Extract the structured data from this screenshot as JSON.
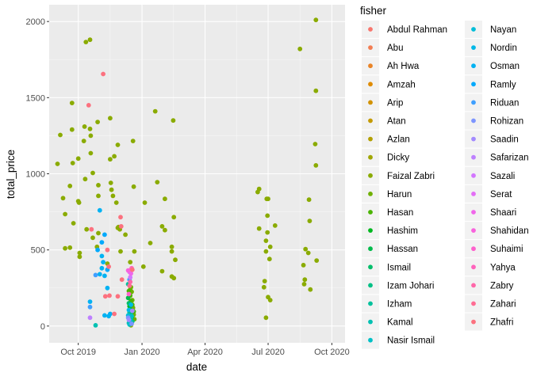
{
  "chart_data": {
    "type": "scatter",
    "title": "",
    "xlabel": "date",
    "ylabel": "total_price",
    "x_type": "date",
    "xlim": [
      "2019-08-20",
      "2020-10-20"
    ],
    "ylim": [
      -110,
      2110
    ],
    "x_ticks": [
      {
        "value": "2019-10-01",
        "label": "Oct 2019"
      },
      {
        "value": "2020-01-01",
        "label": "Jan 2020"
      },
      {
        "value": "2020-04-01",
        "label": "Apr 2020"
      },
      {
        "value": "2020-07-01",
        "label": "Jul 2020"
      },
      {
        "value": "2020-10-01",
        "label": "Oct 2020"
      }
    ],
    "y_ticks": [
      0,
      500,
      1000,
      1500,
      2000
    ],
    "grid": true,
    "panel_background": "#ebebeb",
    "legend": {
      "title": "fisher",
      "placement": "right",
      "columns": 2
    },
    "series": [
      {
        "name": "Abdul Rahman",
        "color": "#F8766D",
        "points": []
      },
      {
        "name": "Abu",
        "color": "#F27D52",
        "points": []
      },
      {
        "name": "Ah Hwa",
        "color": "#E98427",
        "points": []
      },
      {
        "name": "Amzah",
        "color": "#DF8B00",
        "points": []
      },
      {
        "name": "Arip",
        "color": "#D29200",
        "points": []
      },
      {
        "name": "Atan",
        "color": "#C49A00",
        "points": []
      },
      {
        "name": "Azlan",
        "color": "#B3A000",
        "points": []
      },
      {
        "name": "Dicky",
        "color": "#A0A600",
        "points": []
      },
      {
        "name": "Faizal Zabri",
        "color": "#8AAB00",
        "points": [
          [
            "2019-09-01",
            1065
          ],
          [
            "2019-09-05",
            1255
          ],
          [
            "2019-09-09",
            840
          ],
          [
            "2019-09-12",
            735
          ],
          [
            "2019-09-12",
            510
          ],
          [
            "2019-09-19",
            920
          ],
          [
            "2019-09-19",
            515
          ],
          [
            "2019-09-22",
            1465
          ],
          [
            "2019-09-22",
            1290
          ],
          [
            "2019-09-23",
            1070
          ],
          [
            "2019-09-24",
            675
          ],
          [
            "2019-10-01",
            1100
          ],
          [
            "2019-10-01",
            820
          ],
          [
            "2019-10-02",
            810
          ],
          [
            "2019-10-03",
            480
          ],
          [
            "2019-10-03",
            455
          ],
          [
            "2019-10-09",
            1215
          ],
          [
            "2019-10-10",
            1310
          ],
          [
            "2019-10-11",
            965
          ],
          [
            "2019-10-12",
            1865
          ],
          [
            "2019-10-13",
            635
          ],
          [
            "2019-10-18",
            1880
          ],
          [
            "2019-10-18",
            1295
          ],
          [
            "2019-10-19",
            1250
          ],
          [
            "2019-10-19",
            1135
          ],
          [
            "2019-10-22",
            1005
          ],
          [
            "2019-10-22",
            580
          ],
          [
            "2019-10-28",
            520
          ],
          [
            "2019-10-29",
            1340
          ],
          [
            "2019-10-30",
            925
          ],
          [
            "2019-10-30",
            855
          ],
          [
            "2019-10-30",
            610
          ],
          [
            "2019-11-12",
            410
          ],
          [
            "2019-11-16",
            1365
          ],
          [
            "2019-11-16",
            1095
          ],
          [
            "2019-11-17",
            940
          ],
          [
            "2019-11-18",
            895
          ],
          [
            "2019-11-20",
            855
          ],
          [
            "2019-11-22",
            1115
          ],
          [
            "2019-11-25",
            810
          ],
          [
            "2019-11-27",
            1190
          ],
          [
            "2019-11-27",
            645
          ],
          [
            "2019-11-28",
            650
          ],
          [
            "2019-11-30",
            635
          ],
          [
            "2019-12-01",
            490
          ],
          [
            "2019-12-08",
            600
          ],
          [
            "2019-12-15",
            420
          ],
          [
            "2019-12-16",
            5
          ],
          [
            "2019-12-19",
            1215
          ],
          [
            "2019-12-20",
            915
          ],
          [
            "2019-12-21",
            490
          ],
          [
            "2020-01-03",
            390
          ],
          [
            "2020-01-05",
            810
          ],
          [
            "2020-01-13",
            545
          ],
          [
            "2020-01-20",
            1410
          ],
          [
            "2020-01-23",
            945
          ],
          [
            "2020-01-30",
            655
          ],
          [
            "2020-01-30",
            360
          ],
          [
            "2020-02-03",
            835
          ],
          [
            "2020-02-03",
            630
          ],
          [
            "2020-02-13",
            520
          ],
          [
            "2020-02-13",
            490
          ],
          [
            "2020-02-13",
            325
          ],
          [
            "2020-02-15",
            1350
          ],
          [
            "2020-02-16",
            715
          ],
          [
            "2020-02-16",
            315
          ],
          [
            "2020-02-18",
            435
          ],
          [
            "2020-06-16",
            880
          ],
          [
            "2020-06-18",
            900
          ],
          [
            "2020-06-18",
            640
          ],
          [
            "2020-06-25",
            255
          ],
          [
            "2020-06-26",
            295
          ],
          [
            "2020-06-28",
            55
          ],
          [
            "2020-06-28",
            490
          ],
          [
            "2020-06-28",
            560
          ],
          [
            "2020-06-29",
            835
          ],
          [
            "2020-06-30",
            615
          ],
          [
            "2020-06-30",
            725
          ],
          [
            "2020-07-01",
            835
          ],
          [
            "2020-07-01",
            190
          ],
          [
            "2020-07-03",
            440
          ],
          [
            "2020-07-04",
            520
          ],
          [
            "2020-07-04",
            170
          ],
          [
            "2020-07-11",
            660
          ],
          [
            "2020-08-16",
            1820
          ],
          [
            "2020-08-21",
            400
          ],
          [
            "2020-08-22",
            275
          ],
          [
            "2020-08-23",
            305
          ],
          [
            "2020-08-24",
            505
          ],
          [
            "2020-08-28",
            480
          ],
          [
            "2020-08-29",
            830
          ],
          [
            "2020-08-30",
            690
          ],
          [
            "2020-08-31",
            240
          ],
          [
            "2020-09-07",
            1195
          ],
          [
            "2020-09-08",
            1545
          ],
          [
            "2020-09-08",
            1055
          ],
          [
            "2020-09-08",
            2010
          ],
          [
            "2020-09-09",
            430
          ]
        ]
      },
      {
        "name": "Harun",
        "color": "#6FB000",
        "points": [
          [
            "2019-12-15",
            240
          ],
          [
            "2019-12-16",
            255
          ],
          [
            "2019-12-17",
            225
          ],
          [
            "2019-12-18",
            170
          ],
          [
            "2019-12-19",
            120
          ],
          [
            "2019-12-20",
            75
          ],
          [
            "2019-12-21",
            45
          ]
        ]
      },
      {
        "name": "Hasan",
        "color": "#4AB400",
        "points": [
          [
            "2019-12-13",
            230
          ],
          [
            "2019-12-15",
            200
          ],
          [
            "2019-12-16",
            165
          ],
          [
            "2019-12-18",
            140
          ],
          [
            "2019-12-20",
            95
          ]
        ]
      },
      {
        "name": "Hashim",
        "color": "#00B81F",
        "points": [
          [
            "2019-12-14",
            130
          ],
          [
            "2019-12-17",
            60
          ]
        ]
      },
      {
        "name": "Hassan",
        "color": "#00BB4B",
        "points": [
          [
            "2019-12-12",
            185
          ],
          [
            "2019-12-15",
            110
          ]
        ]
      },
      {
        "name": "Ismail",
        "color": "#00BE6A",
        "points": [
          [
            "2019-12-13",
            150
          ],
          [
            "2019-12-16",
            85
          ]
        ]
      },
      {
        "name": "Izam Johari",
        "color": "#00C085",
        "points": [
          [
            "2019-12-14",
            90
          ],
          [
            "2019-12-18",
            30
          ]
        ]
      },
      {
        "name": "Izham",
        "color": "#00C19C",
        "points": [
          [
            "2019-12-12",
            275
          ],
          [
            "2019-12-16",
            50
          ]
        ]
      },
      {
        "name": "Kamal",
        "color": "#00C1B2",
        "points": [
          [
            "2019-10-26",
            5
          ],
          [
            "2019-12-13",
            20
          ]
        ]
      },
      {
        "name": "Nasir Ismail",
        "color": "#00C0C6",
        "points": [
          [
            "2019-12-14",
            10
          ],
          [
            "2019-12-17",
            65
          ]
        ]
      },
      {
        "name": "Nayan",
        "color": "#00BDD8",
        "points": [
          [
            "2019-12-12",
            70
          ],
          [
            "2019-12-15",
            35
          ]
        ]
      },
      {
        "name": "Nordin",
        "color": "#00B8E7",
        "points": [
          [
            "2019-12-13",
            105
          ],
          [
            "2019-12-16",
            140
          ]
        ]
      },
      {
        "name": "Osman",
        "color": "#00B2F3",
        "points": [
          [
            "2019-10-18",
            160
          ],
          [
            "2019-11-01",
            760
          ],
          [
            "2019-11-01",
            340
          ],
          [
            "2019-11-04",
            460
          ],
          [
            "2019-11-04",
            380
          ],
          [
            "2019-11-06",
            420
          ],
          [
            "2019-11-08",
            330
          ],
          [
            "2019-11-08",
            70
          ],
          [
            "2019-11-12",
            250
          ],
          [
            "2019-11-14",
            65
          ],
          [
            "2019-11-16",
            80
          ]
        ]
      },
      {
        "name": "Ramly",
        "color": "#00A9FC",
        "points": [
          [
            "2019-10-29",
            500
          ],
          [
            "2019-11-04",
            550
          ],
          [
            "2019-11-08",
            600
          ],
          [
            "2019-11-12",
            370
          ]
        ]
      },
      {
        "name": "Riduan",
        "color": "#3F9FFF",
        "points": [
          [
            "2019-10-18",
            125
          ],
          [
            "2019-10-26",
            335
          ],
          [
            "2019-12-14",
            305
          ]
        ]
      },
      {
        "name": "Rohizan",
        "color": "#7D95FF",
        "points": [
          [
            "2019-12-12",
            55
          ],
          [
            "2019-12-17",
            15
          ]
        ]
      },
      {
        "name": "Saadin",
        "color": "#A38AFF",
        "points": [
          [
            "2019-12-13",
            40
          ],
          [
            "2019-12-18",
            100
          ]
        ]
      },
      {
        "name": "Safarizan",
        "color": "#BE80FF",
        "points": [
          [
            "2019-10-18",
            55
          ]
        ]
      },
      {
        "name": "Sazali",
        "color": "#D376FF",
        "points": [
          [
            "2019-12-15",
            320
          ]
        ]
      },
      {
        "name": "Serat",
        "color": "#E36EF6",
        "points": [
          [
            "2019-12-14",
            355
          ]
        ]
      },
      {
        "name": "Shaari",
        "color": "#F066EA",
        "points": [
          [
            "2019-12-16",
            345
          ]
        ]
      },
      {
        "name": "Shahidan",
        "color": "#F962DD",
        "points": [
          [
            "2019-12-12",
            365
          ]
        ]
      },
      {
        "name": "Suhaimi",
        "color": "#FE61CD",
        "points": [
          [
            "2019-12-13",
            210
          ]
        ]
      },
      {
        "name": "Yahya",
        "color": "#FF63BC",
        "points": [
          [
            "2019-12-17",
            380
          ]
        ]
      },
      {
        "name": "Zabry",
        "color": "#FF67A9",
        "points": [
          [
            "2019-12-15",
            290
          ]
        ]
      },
      {
        "name": "Zahari",
        "color": "#FF6C93",
        "points": [
          [
            "2019-12-14",
            265
          ]
        ]
      },
      {
        "name": "Zhafri",
        "color": "#FC717F",
        "points": [
          [
            "2019-10-16",
            1450
          ],
          [
            "2019-10-20",
            635
          ],
          [
            "2019-11-06",
            1655
          ],
          [
            "2019-11-09",
            195
          ],
          [
            "2019-11-12",
            500
          ],
          [
            "2019-11-14",
            390
          ],
          [
            "2019-11-15",
            200
          ],
          [
            "2019-11-22",
            80
          ],
          [
            "2019-11-27",
            195
          ],
          [
            "2019-12-01",
            715
          ],
          [
            "2019-12-02",
            655
          ],
          [
            "2019-12-03",
            305
          ],
          [
            "2019-12-18",
            370
          ]
        ]
      }
    ]
  }
}
